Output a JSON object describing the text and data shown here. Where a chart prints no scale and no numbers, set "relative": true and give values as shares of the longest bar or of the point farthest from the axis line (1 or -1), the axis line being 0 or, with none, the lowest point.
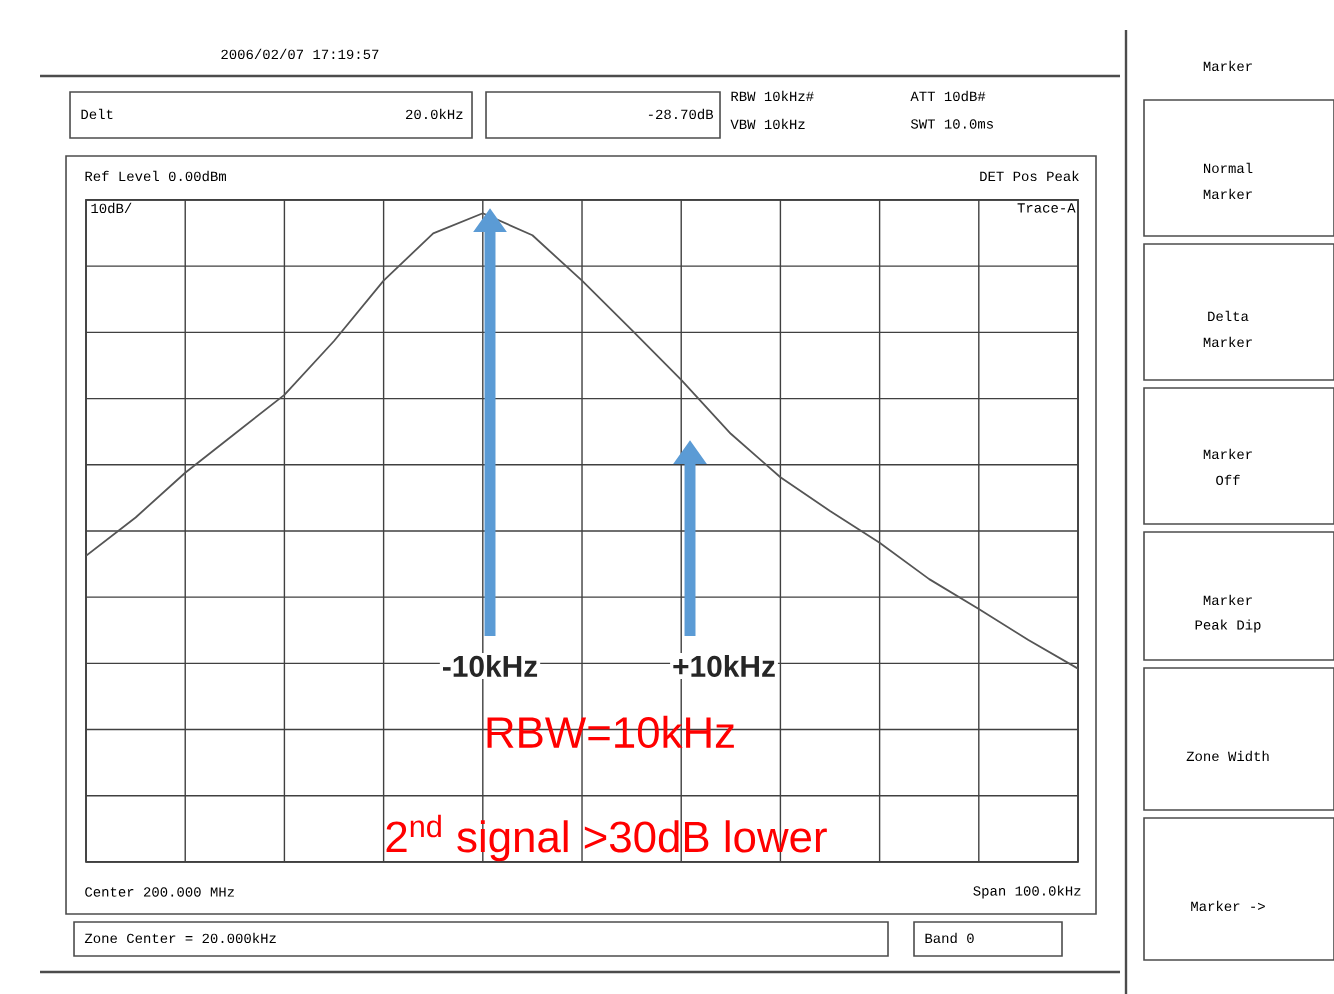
{
  "chart_data": {
    "type": "line",
    "color": "#555555",
    "relative": true,
    "categories": [
      null,
      null,
      null,
      null,
      null,
      null,
      null,
      null,
      null,
      null,
      null,
      null,
      null,
      null,
      null,
      null,
      null,
      null,
      null,
      null,
      null
    ],
    "values": [
      0.472,
      0.531,
      0.6,
      0.66,
      0.72,
      0.803,
      0.896,
      0.969,
      1,
      0.966,
      0.896,
      0.82,
      0.743,
      0.66,
      0.593,
      0.541,
      0.492,
      0.436,
      0.39,
      0.342,
      0.298
    ],
    "grid": true,
    "annotations": [
      "2006/02/07 17:19:57",
      "Delt",
      "20.0kHz",
      "-28.70dB",
      "RBW 10kHz#",
      "VBW 10kHz",
      "ATT 10dB#",
      "SWT 10.0ms",
      "Ref Level 0.00dBm",
      "DET Pos Peak",
      "10dB/",
      "Trace-A",
      "Center 200.000 MHz",
      "Span 100.0kHz",
      "Zone Center = 20.000kHz",
      "Band 0",
      "Marker",
      "Normal",
      "Marker",
      "Delta",
      "Marker",
      "Marker",
      "Off",
      "Marker",
      "Peak Dip",
      "Zone Width",
      "Marker ->",
      "RBW=10kHz",
      "2$^{nd}$ signal >30dB lower",
      "-10kHz",
      "+10kHz"
    ]
  }
}
